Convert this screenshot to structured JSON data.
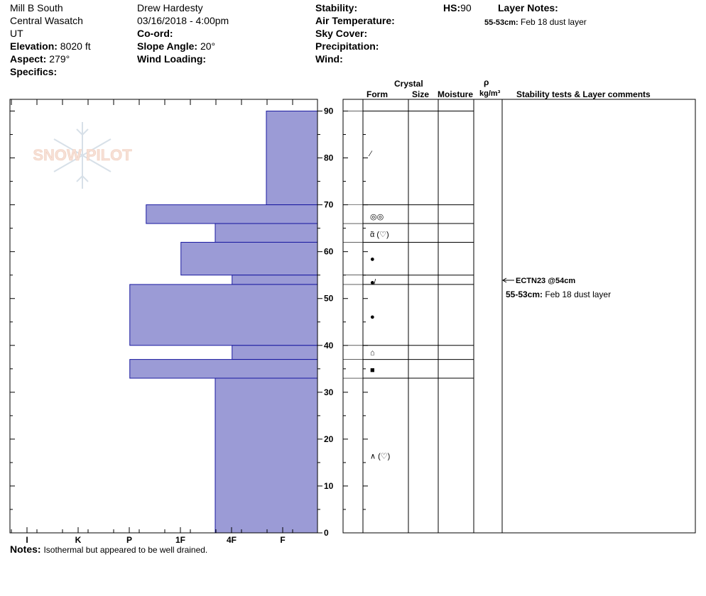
{
  "header": {
    "location": "Mill B South",
    "range": "Central Wasatch",
    "state": "UT",
    "elevation_label": "Elevation:",
    "elevation_value": "8020 ft",
    "aspect_label": "Aspect:",
    "aspect_value": "279°",
    "specifics_label": "Specifics:",
    "observer": "Drew Hardesty",
    "datetime": "03/16/2018 - 4:00pm",
    "coord_label": "Co-ord:",
    "slope_label": "Slope Angle:",
    "slope_value": "20°",
    "wind_loading_label": "Wind Loading:",
    "stability_label": "Stability:",
    "air_temp_label": "Air Temperature:",
    "sky_label": "Sky Cover:",
    "precip_label": "Precipitation:",
    "wind_label": "Wind:",
    "hs_label": "HS:",
    "hs_value": "90",
    "layer_notes_label": "Layer Notes:",
    "layer_note_range": "55-53cm:",
    "layer_note_text": "Feb 18 dust layer"
  },
  "columns": {
    "crystal": "Crystal",
    "form": "Form",
    "size": "Size",
    "moisture": "Moisture",
    "rho": "ρ",
    "density_unit": "kg/m³",
    "stability": "Stability tests & Layer comments"
  },
  "logo": {
    "text": "SNOW PILOT"
  },
  "notes": {
    "label": "Notes:",
    "text": "Isothermal but appeared to be well drained."
  },
  "comments": {
    "test": "ECTN23 @54cm",
    "layer_range": "55-53cm:",
    "layer_text": "Feb 18 dust layer"
  },
  "forms": [
    {
      "height": 81,
      "symbol": "⁄"
    },
    {
      "height": 67.5,
      "symbol": "◎◎"
    },
    {
      "height": 63.7,
      "symbol": "ᾶ (♡)"
    },
    {
      "height": 58.5,
      "symbol": "●"
    },
    {
      "height": 53.5,
      "symbol": "●̸"
    },
    {
      "height": 46.2,
      "symbol": "●"
    },
    {
      "height": 38.5,
      "symbol": "⌂"
    },
    {
      "height": 34.8,
      "symbol": "■"
    },
    {
      "height": 16.4,
      "symbol": "∧ (♡)"
    }
  ],
  "layer_lines": [
    90,
    70,
    66,
    62,
    55,
    53,
    40,
    37,
    33
  ],
  "chart_data": {
    "type": "bar",
    "orientation": "horizontal",
    "x_categories": [
      "I",
      "K",
      "P",
      "1F",
      "4F",
      "F"
    ],
    "y_ticks": [
      0,
      10,
      20,
      30,
      40,
      50,
      60,
      70,
      80,
      90
    ],
    "ylim": [
      0,
      92.5
    ],
    "layers": [
      {
        "top": 90,
        "bottom": 70,
        "hardness": 1.0
      },
      {
        "top": 70,
        "bottom": 66,
        "hardness": 3.35
      },
      {
        "top": 66,
        "bottom": 62,
        "hardness": 2.0
      },
      {
        "top": 62,
        "bottom": 55,
        "hardness": 2.67
      },
      {
        "top": 55,
        "bottom": 53,
        "hardness": 1.67
      },
      {
        "top": 53,
        "bottom": 40,
        "hardness": 3.67
      },
      {
        "top": 40,
        "bottom": 37,
        "hardness": 1.67
      },
      {
        "top": 37,
        "bottom": 33,
        "hardness": 3.67
      },
      {
        "top": 33,
        "bottom": 0,
        "hardness": 2.0
      }
    ]
  }
}
